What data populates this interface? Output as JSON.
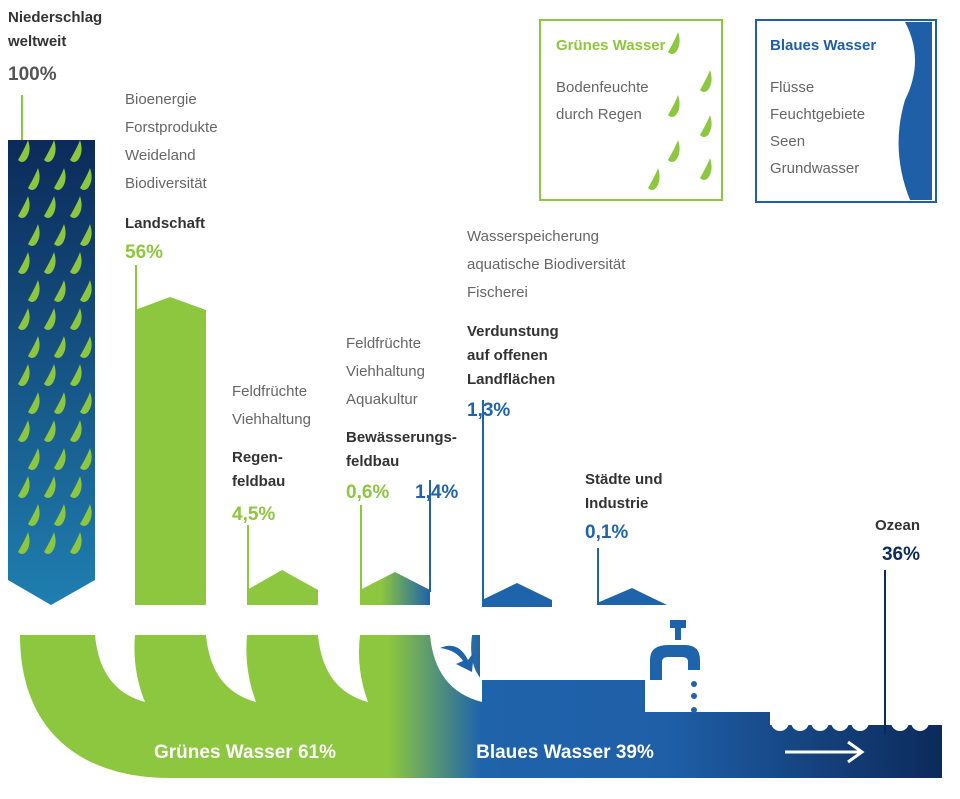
{
  "source": {
    "label": [
      "Niederschlag",
      "weltweit"
    ],
    "value": "100%"
  },
  "legend": {
    "green": {
      "title": "Grünes Wasser",
      "items": [
        "Bodenfeuchte",
        "durch Regen"
      ]
    },
    "blue": {
      "title": "Blaues Wasser",
      "items": [
        "Flüsse",
        "Feuchtgebiete",
        "Seen",
        "Grundwasser"
      ]
    }
  },
  "uses": [
    {
      "items": [
        "Bioenergie",
        "Forstprodukte",
        "Weideland",
        "Biodiversität"
      ],
      "title": [
        "Landschaft"
      ],
      "values": [
        "56%"
      ]
    },
    {
      "items": [
        "Feldfrüchte",
        "Viehhaltung"
      ],
      "title": [
        "Regen-",
        "feldbau"
      ],
      "values": [
        "4,5%"
      ]
    },
    {
      "items": [
        "Feldfrüchte",
        "Viehhaltung",
        "Aquakultur"
      ],
      "title": [
        "Bewässerungs-",
        "feldbau"
      ],
      "values": [
        "0,6%",
        "1,4%"
      ]
    },
    {
      "items": [
        "Wasserspeicherung",
        "aquatische Biodiversität",
        "Fischerei"
      ],
      "title": [
        "Verdunstung",
        "auf offenen",
        "Landflächen"
      ],
      "values": [
        "1,3%"
      ]
    },
    {
      "items": [],
      "title": [
        "Städte und",
        "Industrie"
      ],
      "values": [
        "0,1%"
      ]
    },
    {
      "items": [],
      "title": [
        "Ozean"
      ],
      "values": [
        "36%"
      ]
    }
  ],
  "flows": {
    "green": "Grünes Wasser 61%",
    "blue": "Blaues Wasser 39%"
  }
}
